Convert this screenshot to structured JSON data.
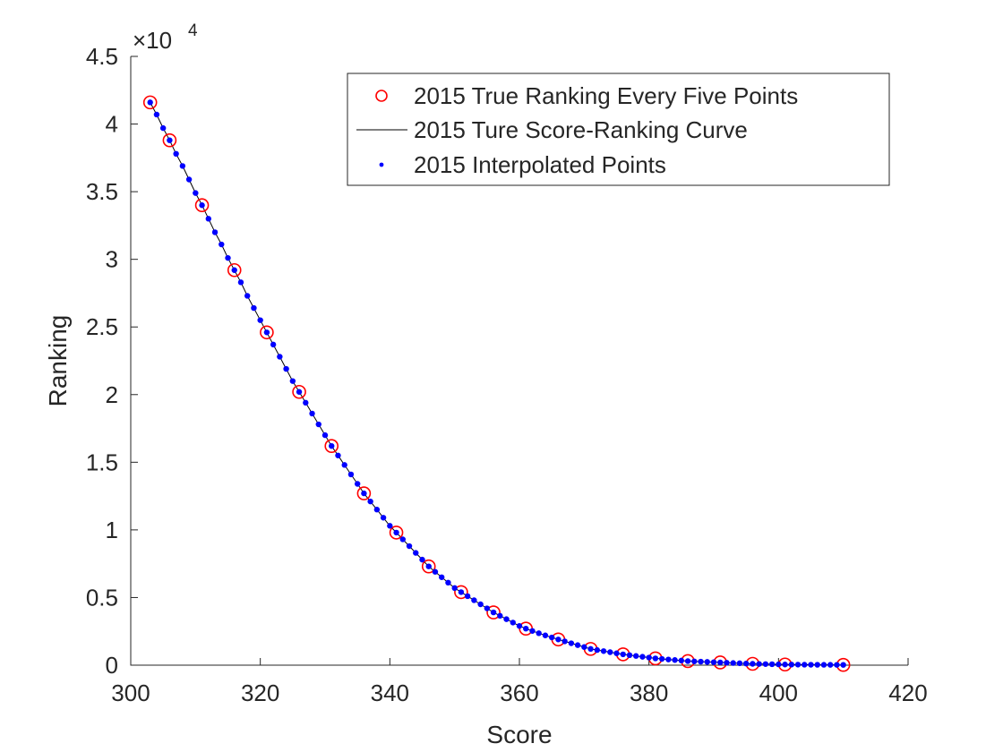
{
  "chart_data": {
    "type": "scatter",
    "xlabel": "Score",
    "ylabel": "Ranking",
    "xlim": [
      300,
      420
    ],
    "ylim": [
      0,
      45000
    ],
    "y_scale_label": "×10",
    "y_scale_exponent": "4",
    "x_ticks": [
      300,
      320,
      340,
      360,
      380,
      400,
      420
    ],
    "x_tick_labels": [
      "300",
      "320",
      "340",
      "360",
      "380",
      "400",
      "420"
    ],
    "y_ticks": [
      0,
      5000,
      10000,
      15000,
      20000,
      25000,
      30000,
      35000,
      40000,
      45000
    ],
    "y_tick_labels": [
      "0",
      "0.5",
      "1",
      "1.5",
      "2",
      "2.5",
      "3",
      "3.5",
      "4",
      "4.5"
    ],
    "grid": false,
    "legend_position": "top-right",
    "series": [
      {
        "name": "2015 True Ranking Every Five Points",
        "marker": "circle-open",
        "color": "#ff0000",
        "x": [
          303,
          306,
          311,
          316,
          321,
          326,
          331,
          336,
          341,
          346,
          351,
          356,
          361,
          366,
          371,
          376,
          381,
          386,
          391,
          396,
          401,
          410
        ],
        "y": [
          41600,
          38800,
          34000,
          29200,
          24600,
          20200,
          16200,
          12700,
          9800,
          7300,
          5400,
          3900,
          2700,
          1900,
          1200,
          800,
          500,
          300,
          200,
          100,
          50,
          20
        ]
      },
      {
        "name": "2015 Ture Score-Ranking Curve",
        "marker": "line",
        "color": "#000000",
        "x": [
          303,
          306,
          311,
          316,
          321,
          326,
          331,
          336,
          341,
          346,
          351,
          356,
          361,
          366,
          371,
          376,
          381,
          386,
          391,
          396,
          401,
          410
        ],
        "y": [
          41600,
          38800,
          34000,
          29200,
          24600,
          20200,
          16200,
          12700,
          9800,
          7300,
          5400,
          3900,
          2700,
          1900,
          1200,
          800,
          500,
          300,
          200,
          100,
          50,
          20
        ]
      },
      {
        "name": "2015 Interpolated Points",
        "marker": "dot",
        "color": "#0000ff",
        "x": [
          303,
          304,
          305,
          306,
          307,
          308,
          309,
          310,
          311,
          312,
          313,
          314,
          315,
          316,
          317,
          318,
          319,
          320,
          321,
          322,
          323,
          324,
          325,
          326,
          327,
          328,
          329,
          330,
          331,
          332,
          333,
          334,
          335,
          336,
          337,
          338,
          339,
          340,
          341,
          342,
          343,
          344,
          345,
          346,
          347,
          348,
          349,
          350,
          351,
          352,
          353,
          354,
          355,
          356,
          357,
          358,
          359,
          360,
          361,
          362,
          363,
          364,
          365,
          366,
          367,
          368,
          369,
          370,
          371,
          372,
          373,
          374,
          375,
          376,
          377,
          378,
          379,
          380,
          381,
          382,
          383,
          384,
          385,
          386,
          387,
          388,
          389,
          390,
          391,
          392,
          393,
          394,
          395,
          396,
          397,
          398,
          399,
          400,
          401,
          402,
          403,
          404,
          405,
          406,
          407,
          408,
          409,
          410
        ],
        "y": [
          41600,
          40700,
          39700,
          38800,
          37800,
          36900,
          35900,
          34900,
          34000,
          33000,
          32000,
          31100,
          30100,
          29200,
          28300,
          27300,
          26400,
          25500,
          24600,
          23700,
          22800,
          21900,
          21000,
          20200,
          19400,
          18600,
          17800,
          17000,
          16200,
          15500,
          14800,
          14100,
          13400,
          12700,
          12100,
          11500,
          10900,
          10300,
          9800,
          9300,
          8800,
          8300,
          7800,
          7300,
          6900,
          6500,
          6100,
          5700,
          5400,
          5100,
          4800,
          4500,
          4200,
          3900,
          3650,
          3400,
          3150,
          2900,
          2700,
          2530,
          2360,
          2200,
          2050,
          1900,
          1760,
          1620,
          1480,
          1340,
          1200,
          1120,
          1040,
          960,
          880,
          800,
          740,
          680,
          620,
          560,
          500,
          460,
          420,
          380,
          340,
          300,
          280,
          260,
          240,
          220,
          200,
          180,
          160,
          140,
          120,
          100,
          90,
          80,
          70,
          60,
          50,
          45,
          40,
          36,
          32,
          29,
          26,
          24,
          22,
          20
        ]
      }
    ]
  }
}
